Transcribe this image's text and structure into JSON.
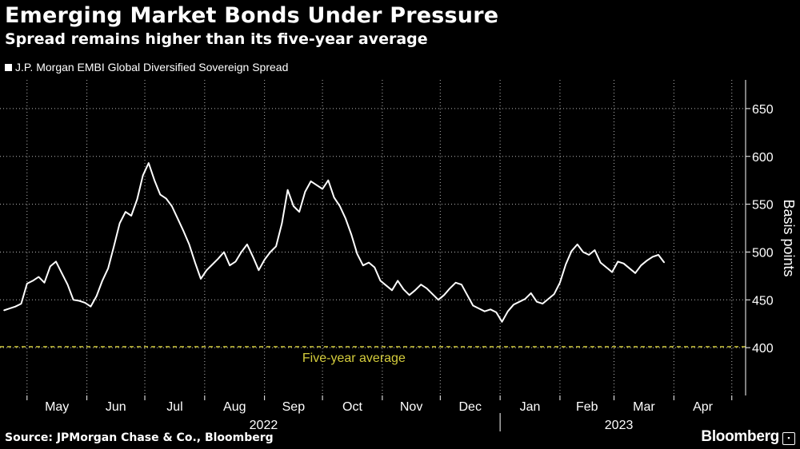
{
  "header": {
    "title": "Emerging Market Bonds Under Pressure",
    "subtitle": "Spread remains higher than its five-year average"
  },
  "footer": {
    "source": "Source: JPMorgan Chase & Co., Bloomberg",
    "brand": "Bloomberg"
  },
  "colors": {
    "background": "#000000",
    "series": "#ffffff",
    "average": "#d4cc3c",
    "grid": "#b8b8b8"
  },
  "chart_data": {
    "type": "line",
    "title": "Emerging Market Bonds Under Pressure",
    "subtitle": "Spread remains higher than its five-year average",
    "legend": "J.P. Morgan EMBI Global Diversified Sovereign Spread",
    "ylabel": "Basis points",
    "ylim": [
      350,
      680
    ],
    "yticks": [
      400,
      450,
      500,
      550,
      600,
      650
    ],
    "months": [
      "May",
      "Jun",
      "Jul",
      "Aug",
      "Sep",
      "Oct",
      "Nov",
      "Dec",
      "Jan",
      "Feb",
      "Mar",
      "Apr"
    ],
    "years": [
      "2022",
      "2023"
    ],
    "average_line": {
      "label": "Five-year average",
      "value": 401
    },
    "series": [
      {
        "name": "J.P. Morgan EMBI Global Diversified Sovereign Spread",
        "x_start": "2022-04-19",
        "step_days": 3,
        "values": [
          439,
          441,
          443,
          446,
          467,
          470,
          474,
          468,
          485,
          490,
          478,
          466,
          450,
          449,
          447,
          443,
          454,
          470,
          483,
          506,
          530,
          542,
          538,
          555,
          580,
          593,
          575,
          560,
          556,
          548,
          535,
          522,
          508,
          489,
          472,
          481,
          487,
          493,
          500,
          486,
          490,
          500,
          508,
          495,
          481,
          492,
          500,
          506,
          530,
          565,
          548,
          542,
          563,
          574,
          570,
          566,
          575,
          557,
          548,
          535,
          518,
          498,
          486,
          489,
          484,
          470,
          465,
          460,
          470,
          461,
          455,
          460,
          466,
          462,
          456,
          450,
          455,
          462,
          468,
          466,
          455,
          444,
          441,
          438,
          440,
          437,
          427,
          438,
          445,
          448,
          451,
          457,
          448,
          446,
          451,
          456,
          468,
          487,
          501,
          508,
          500,
          497,
          502,
          489,
          484,
          479,
          490,
          488,
          483,
          478,
          486,
          491,
          495,
          497,
          489
        ]
      }
    ]
  }
}
